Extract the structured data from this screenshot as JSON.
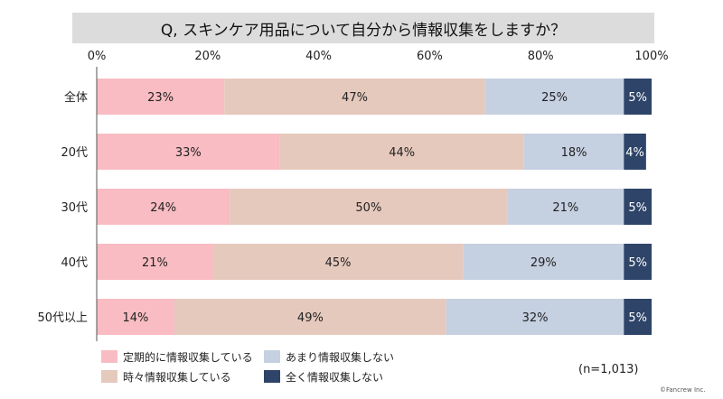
{
  "title": "Q, スキンケア用品について自分から情報収集をしますか？",
  "sample_note": "(n=1,013)",
  "credit": "©Fancrew Inc.",
  "chart_data": {
    "type": "bar",
    "orientation": "horizontal",
    "stacked": true,
    "percent": true,
    "categories": [
      "全体",
      "20代",
      "30代",
      "40代",
      "50代以上"
    ],
    "series": [
      {
        "name": "定期的に情報収集している",
        "color": "#f8bcc2",
        "values": [
          23,
          33,
          24,
          21,
          14
        ]
      },
      {
        "name": "時々情報収集している",
        "color": "#e6c9bd",
        "values": [
          47,
          44,
          50,
          45,
          49
        ]
      },
      {
        "name": "あまり情報収集しない",
        "color": "#c5d0e1",
        "values": [
          25,
          18,
          21,
          29,
          32
        ]
      },
      {
        "name": "全く情報収集しない",
        "color": "#2e4468",
        "values": [
          5,
          4,
          5,
          5,
          5
        ]
      }
    ],
    "x_ticks": [
      "0%",
      "20%",
      "40%",
      "60%",
      "80%",
      "100%"
    ],
    "xlim": [
      0,
      100
    ],
    "legend_position": "bottom-left",
    "grid": false
  }
}
